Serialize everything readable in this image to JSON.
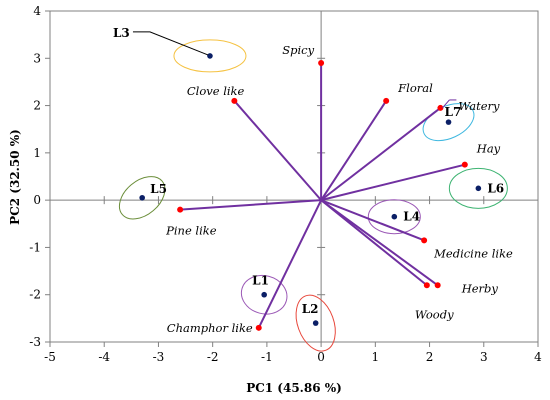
{
  "chart_data": {
    "type": "scatter",
    "subtype": "pca-biplot",
    "title": "",
    "xlabel": "PC1 (45.86 %)",
    "ylabel": "PC2 (32.50 %)",
    "xlim": [
      -5,
      4
    ],
    "ylim": [
      -3,
      4
    ],
    "x_ticks": [
      -5,
      -4,
      -3,
      -2,
      -1,
      0,
      1,
      2,
      3,
      4
    ],
    "y_ticks": [
      -3,
      -2,
      -1,
      0,
      1,
      2,
      3,
      4
    ],
    "grid": false,
    "legend": "none",
    "loading_color": "#7030a0",
    "loading_point_color": "#ff0000",
    "sample_point_color": "#0b1f66",
    "loadings": [
      {
        "label": "Spicy",
        "x": 0.0,
        "y": 2.9
      },
      {
        "label": "Clove like",
        "x": -1.6,
        "y": 2.1
      },
      {
        "label": "Floral",
        "x": 1.2,
        "y": 2.1
      },
      {
        "label": "Watery",
        "x": 2.2,
        "y": 1.95
      },
      {
        "label": "Hay",
        "x": 2.65,
        "y": 0.75
      },
      {
        "label": "Pine like",
        "x": -2.6,
        "y": -0.2
      },
      {
        "label": "Medicine like",
        "x": 1.9,
        "y": -0.85
      },
      {
        "label": "Herby",
        "x": 2.15,
        "y": -1.8
      },
      {
        "label": "Woody",
        "x": 1.95,
        "y": -1.8
      },
      {
        "label": "Champhor like",
        "x": -1.15,
        "y": -2.7
      }
    ],
    "samples": [
      {
        "label": "L1",
        "x": -1.05,
        "y": -2.0,
        "ellipse_color": "#9b59b6"
      },
      {
        "label": "L2",
        "x": -0.1,
        "y": -2.6,
        "ellipse_color": "#e8483c"
      },
      {
        "label": "L3",
        "x": -2.05,
        "y": 3.05,
        "ellipse_color": "#f5c242"
      },
      {
        "label": "L4",
        "x": 1.35,
        "y": -0.35,
        "ellipse_color": "#9b59b6"
      },
      {
        "label": "L5",
        "x": -3.3,
        "y": 0.05,
        "ellipse_color": "#6b8e3a"
      },
      {
        "label": "L6",
        "x": 2.9,
        "y": 0.25,
        "ellipse_color": "#3cb371"
      },
      {
        "label": "L7",
        "x": 2.35,
        "y": 1.65,
        "ellipse_color": "#3fb8e0"
      }
    ]
  }
}
